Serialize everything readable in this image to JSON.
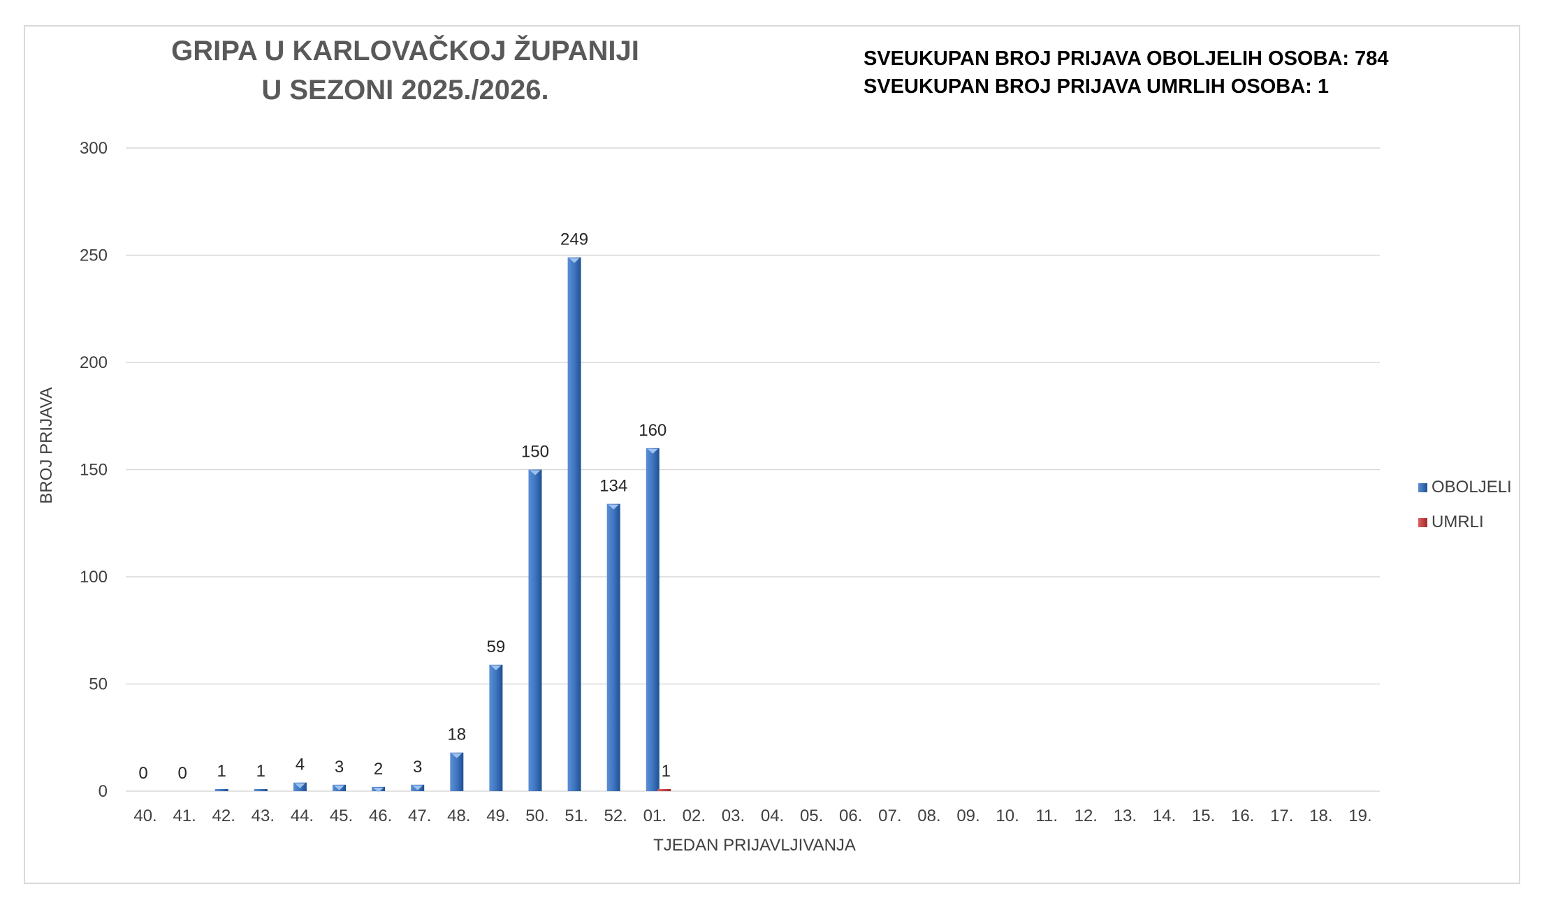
{
  "header": {
    "title_line1": "GRIPA U KARLOVAČKOJ ŽUPANIJI",
    "title_line2": "U SEZONI 2025./2026.",
    "info_line1": "SVEUKUPAN BROJ PRIJAVA OBOLJELIH OSOBA: 784",
    "info_line2": "SVEUKUPAN BROJ PRIJAVA UMRLIH OSOBA: 1"
  },
  "colors": {
    "oboljeli": "#3f76c0",
    "oboljeli_dark": "#1f4f91",
    "umrli": "#c0393b",
    "grid": "#d9d9d9"
  },
  "chart_data": {
    "type": "bar",
    "title": "GRIPA U KARLOVAČKOJ ŽUPANIJI U SEZONI 2025./2026.",
    "xlabel": "TJEDAN PRIJAVLJIVANJA",
    "ylabel": "BROJ PRIJAVA",
    "ylim": [
      0,
      300
    ],
    "yticks": [
      0,
      50,
      100,
      150,
      200,
      250,
      300
    ],
    "grid": true,
    "legend_position": "right",
    "categories": [
      "40.",
      "41.",
      "42.",
      "43.",
      "44.",
      "45.",
      "46.",
      "47.",
      "48.",
      "49.",
      "50.",
      "51.",
      "52.",
      "01.",
      "02.",
      "03.",
      "04.",
      "05.",
      "06.",
      "07.",
      "08.",
      "09.",
      "10.",
      "11.",
      "12.",
      "13.",
      "14.",
      "15.",
      "16.",
      "17.",
      "18.",
      "19."
    ],
    "series": [
      {
        "name": "OBOLJELI",
        "values": [
          0,
          0,
          1,
          1,
          4,
          3,
          2,
          3,
          18,
          59,
          150,
          249,
          134,
          160,
          null,
          null,
          null,
          null,
          null,
          null,
          null,
          null,
          null,
          null,
          null,
          null,
          null,
          null,
          null,
          null,
          null,
          null
        ]
      },
      {
        "name": "UMRLI",
        "values": [
          null,
          null,
          null,
          null,
          null,
          null,
          null,
          null,
          null,
          null,
          null,
          null,
          null,
          1,
          null,
          null,
          null,
          null,
          null,
          null,
          null,
          null,
          null,
          null,
          null,
          null,
          null,
          null,
          null,
          null,
          null,
          null
        ]
      }
    ]
  }
}
